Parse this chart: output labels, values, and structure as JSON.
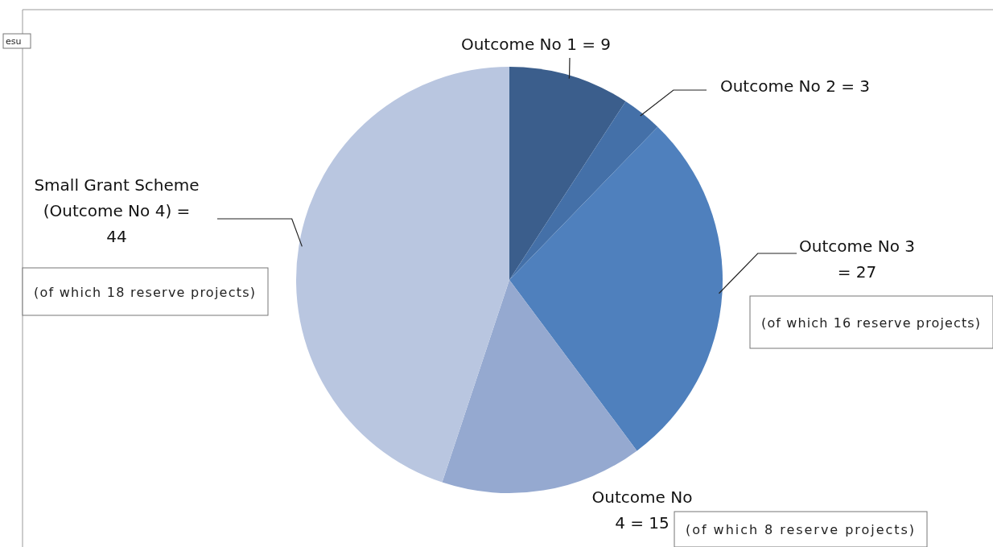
{
  "chart_data": {
    "type": "pie",
    "categories": [
      "Outcome No 1 = 9",
      "Outcome No 2 =  3",
      "Outcome No 3 = 27",
      "Outcome No 4 = 15",
      "Small Grant Scheme (Outcome No 4) = 44"
    ],
    "values": [
      9,
      3,
      27,
      15,
      44
    ],
    "colors": [
      "#3b5e8c",
      "#4470a8",
      "#4f80bd",
      "#95a9d0",
      "#b9c6e0"
    ],
    "annotations": [
      "(of which 18 reserve projects)",
      "(of which 16 reserve projects)",
      "(of which 8 reserve projects)",
      "esu"
    ]
  }
}
